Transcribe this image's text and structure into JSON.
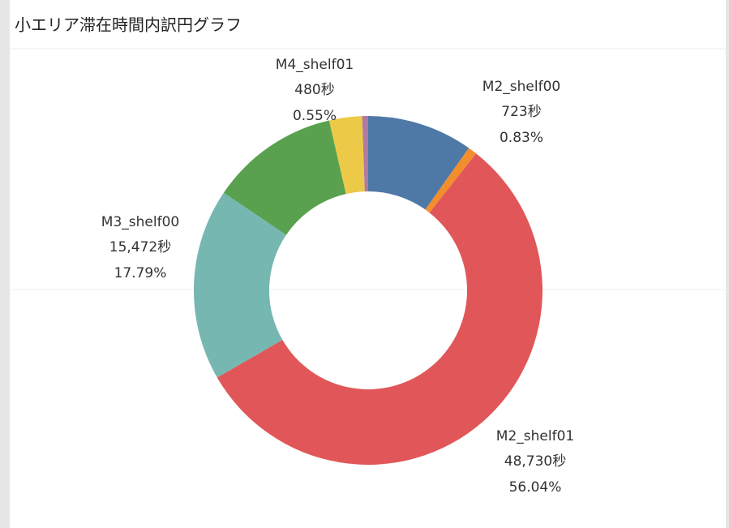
{
  "chart_data": {
    "type": "donut",
    "title": "小エリア滞在時間内訳円グラフ",
    "categories": [
      null,
      "M2_shelf00",
      "M2_shelf01",
      "M3_shelf00",
      null,
      null,
      "M4_shelf01"
    ],
    "values": [
      9.8,
      0.83,
      56.04,
      17.79,
      11.95,
      3.04,
      0.55
    ],
    "value_labels": [
      null,
      "0.83%",
      "56.04%",
      "17.79%",
      null,
      null,
      "0.55%"
    ],
    "seconds_labels": [
      null,
      "723秒",
      "48,730秒",
      "15,472秒",
      null,
      null,
      "480秒"
    ],
    "colors": [
      "#4e79a7",
      "#f28e2b",
      "#e15759",
      "#76b7b2",
      "#59a14f",
      "#edc948",
      "#b07aa1"
    ]
  }
}
